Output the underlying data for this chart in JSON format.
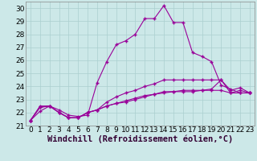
{
  "xlabel": "Windchill (Refroidissement éolien,°C)",
  "x_hours": [
    0,
    1,
    2,
    3,
    4,
    5,
    6,
    7,
    8,
    9,
    10,
    11,
    12,
    13,
    14,
    15,
    16,
    17,
    18,
    19,
    20,
    21,
    22,
    23
  ],
  "line1": [
    21.4,
    22.1,
    22.5,
    22.2,
    21.8,
    21.7,
    21.8,
    24.3,
    25.9,
    27.2,
    27.5,
    28.0,
    29.2,
    29.2,
    30.2,
    28.9,
    28.9,
    26.6,
    26.3,
    25.9,
    24.1,
    23.8,
    23.5,
    23.5
  ],
  "line2": [
    21.4,
    22.5,
    22.5,
    22.0,
    21.6,
    21.6,
    22.0,
    22.2,
    22.8,
    23.2,
    23.5,
    23.7,
    24.0,
    24.2,
    24.5,
    24.5,
    24.5,
    24.5,
    24.5,
    24.5,
    24.5,
    23.5,
    23.5,
    23.5
  ],
  "line3": [
    21.4,
    22.4,
    22.5,
    22.0,
    21.6,
    21.6,
    22.0,
    22.2,
    22.5,
    22.7,
    22.8,
    23.0,
    23.2,
    23.4,
    23.5,
    23.6,
    23.7,
    23.7,
    23.7,
    23.7,
    23.7,
    23.5,
    23.7,
    23.5
  ],
  "line4": [
    21.4,
    22.4,
    22.5,
    22.0,
    21.6,
    21.6,
    22.0,
    22.2,
    22.5,
    22.7,
    22.9,
    23.1,
    23.3,
    23.4,
    23.6,
    23.6,
    23.6,
    23.6,
    23.7,
    23.8,
    24.5,
    23.7,
    23.9,
    23.5
  ],
  "line_color": "#990099",
  "bg_color": "#cce8e8",
  "grid_color": "#aacfcf",
  "ylim": [
    21,
    30.5
  ],
  "yticks": [
    21,
    22,
    23,
    24,
    25,
    26,
    27,
    28,
    29,
    30
  ],
  "tick_fontsize": 6.5,
  "xlabel_fontsize": 7.5,
  "figsize": [
    3.2,
    2.0
  ],
  "dpi": 100
}
